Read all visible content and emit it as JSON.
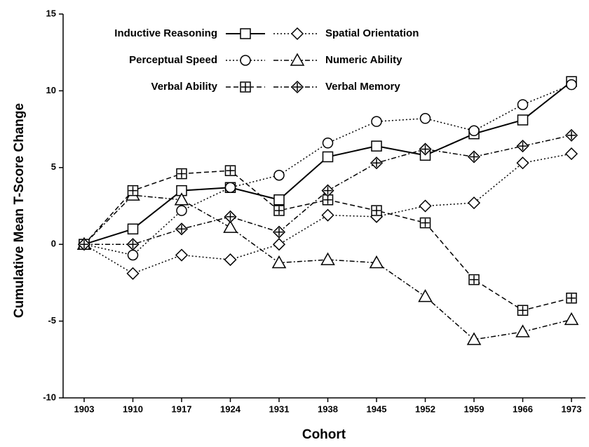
{
  "chart_data": {
    "type": "line",
    "xlabel": "Cohort",
    "ylabel": "Cumulative Mean T-Score Change",
    "categories": [
      "1903",
      "1910",
      "1917",
      "1924",
      "1931",
      "1938",
      "1945",
      "1952",
      "1959",
      "1966",
      "1973"
    ],
    "ylim": [
      -10,
      15
    ],
    "yticks": [
      -10,
      -5,
      0,
      5,
      10,
      15
    ],
    "grid": false,
    "legend": "upper left",
    "series": [
      {
        "name": "Inductive Reasoning",
        "color": "#000000",
        "marker": "square",
        "line_style": "solid",
        "values": [
          0,
          1.0,
          3.5,
          3.7,
          2.9,
          5.7,
          6.4,
          5.8,
          7.2,
          8.1,
          10.6
        ]
      },
      {
        "name": "Spatial Orientation",
        "color": "#000000",
        "marker": "diamond",
        "line_style": "dotted",
        "values": [
          0,
          -1.9,
          -0.7,
          -1.0,
          0.0,
          1.9,
          1.8,
          2.5,
          2.7,
          5.3,
          5.9
        ]
      },
      {
        "name": "Perceptual Speed",
        "color": "#000000",
        "marker": "circle",
        "line_style": "dotted",
        "values": [
          0,
          -0.7,
          2.2,
          3.7,
          4.5,
          6.6,
          8.0,
          8.2,
          7.4,
          9.1,
          10.4
        ]
      },
      {
        "name": "Numeric Ability",
        "color": "#000000",
        "marker": "triangle",
        "line_style": "dashdot",
        "values": [
          0,
          3.2,
          2.9,
          1.1,
          -1.2,
          -1.0,
          -1.2,
          -3.4,
          -6.2,
          -5.7,
          -4.9
        ]
      },
      {
        "name": "Verbal Ability",
        "color": "#000000",
        "marker": "square-plus",
        "line_style": "dashed",
        "values": [
          0,
          3.5,
          4.6,
          4.8,
          2.2,
          2.9,
          2.2,
          1.4,
          -2.3,
          -4.3,
          -3.5
        ]
      },
      {
        "name": "Verbal Memory",
        "color": "#000000",
        "marker": "diamond-plus",
        "line_style": "dashdot",
        "values": [
          0,
          0.0,
          1.0,
          1.8,
          0.8,
          3.5,
          5.3,
          6.2,
          5.7,
          6.4,
          7.1
        ]
      }
    ]
  }
}
